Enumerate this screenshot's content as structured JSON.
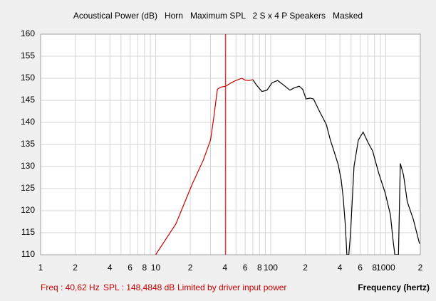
{
  "chart_data": {
    "type": "line",
    "title": "Acoustical Power (dB)   Horn   Maximum SPL   2 S x 4 P Speakers   Masked",
    "x_label": "Frequency (hertz)",
    "xlim": [
      1,
      2000
    ],
    "ylim": [
      110,
      160
    ],
    "log_x": true,
    "grid": true,
    "xticks": [
      1,
      2,
      4,
      6,
      8,
      10,
      {
        "value": 20,
        "label": "2"
      },
      {
        "value": 40,
        "label": "4"
      },
      {
        "value": 60,
        "label": "6"
      },
      {
        "value": 80,
        "label": "8"
      },
      100,
      {
        "value": 200,
        "label": "2"
      },
      {
        "value": 400,
        "label": "4"
      },
      {
        "value": 600,
        "label": "6"
      },
      {
        "value": 800,
        "label": "8"
      },
      1000,
      {
        "value": 2000,
        "label": "2"
      }
    ],
    "x_minor_ticks": [
      3,
      5,
      7,
      9,
      30,
      50,
      70,
      90,
      300,
      500,
      700,
      900
    ],
    "yticks": [
      110,
      115,
      120,
      125,
      130,
      135,
      140,
      145,
      150,
      155,
      160
    ],
    "cursor_x": 40.62,
    "cursor_color": "#cc0000",
    "series": [
      {
        "color": "#cc0000",
        "x": [
          10,
          15,
          20.8,
          26,
          30,
          32,
          34.4,
          36.8,
          40.6,
          45.5,
          50,
          56,
          60,
          65,
          70
        ],
        "values": [
          110,
          117,
          126,
          131.5,
          136,
          141,
          147.5,
          148,
          148.2,
          149,
          149.5,
          150,
          149.6,
          149.5,
          149.7
        ]
      },
      {
        "color": "#000000",
        "x": [
          70,
          75,
          84,
          93,
          103,
          115,
          129,
          147,
          160,
          177,
          190,
          203,
          220,
          236,
          260,
          305,
          330,
          350,
          386,
          410,
          427,
          445,
          460,
          478,
          495,
          530,
          578,
          636,
          700,
          770,
          870,
          990,
          1100,
          1150,
          1200,
          1250,
          1290,
          1340,
          1430,
          1540,
          1740,
          1970
        ],
        "values": [
          149.7,
          148.5,
          147,
          147.3,
          149,
          149.5,
          148.5,
          147.3,
          147.8,
          148.2,
          147.5,
          145.3,
          145.5,
          145.3,
          143,
          139.5,
          136,
          134,
          130.5,
          127,
          123,
          117,
          110,
          110,
          115,
          130,
          136,
          137.8,
          135.5,
          133.5,
          128.5,
          124,
          119,
          114,
          110,
          110,
          110,
          130.7,
          128,
          122,
          118,
          112.5
        ]
      }
    ],
    "footer": {
      "freq": "Freq : 40,62 Hz",
      "spl": "SPL : 148,4848 dB",
      "status": "Limited by driver input power"
    }
  }
}
